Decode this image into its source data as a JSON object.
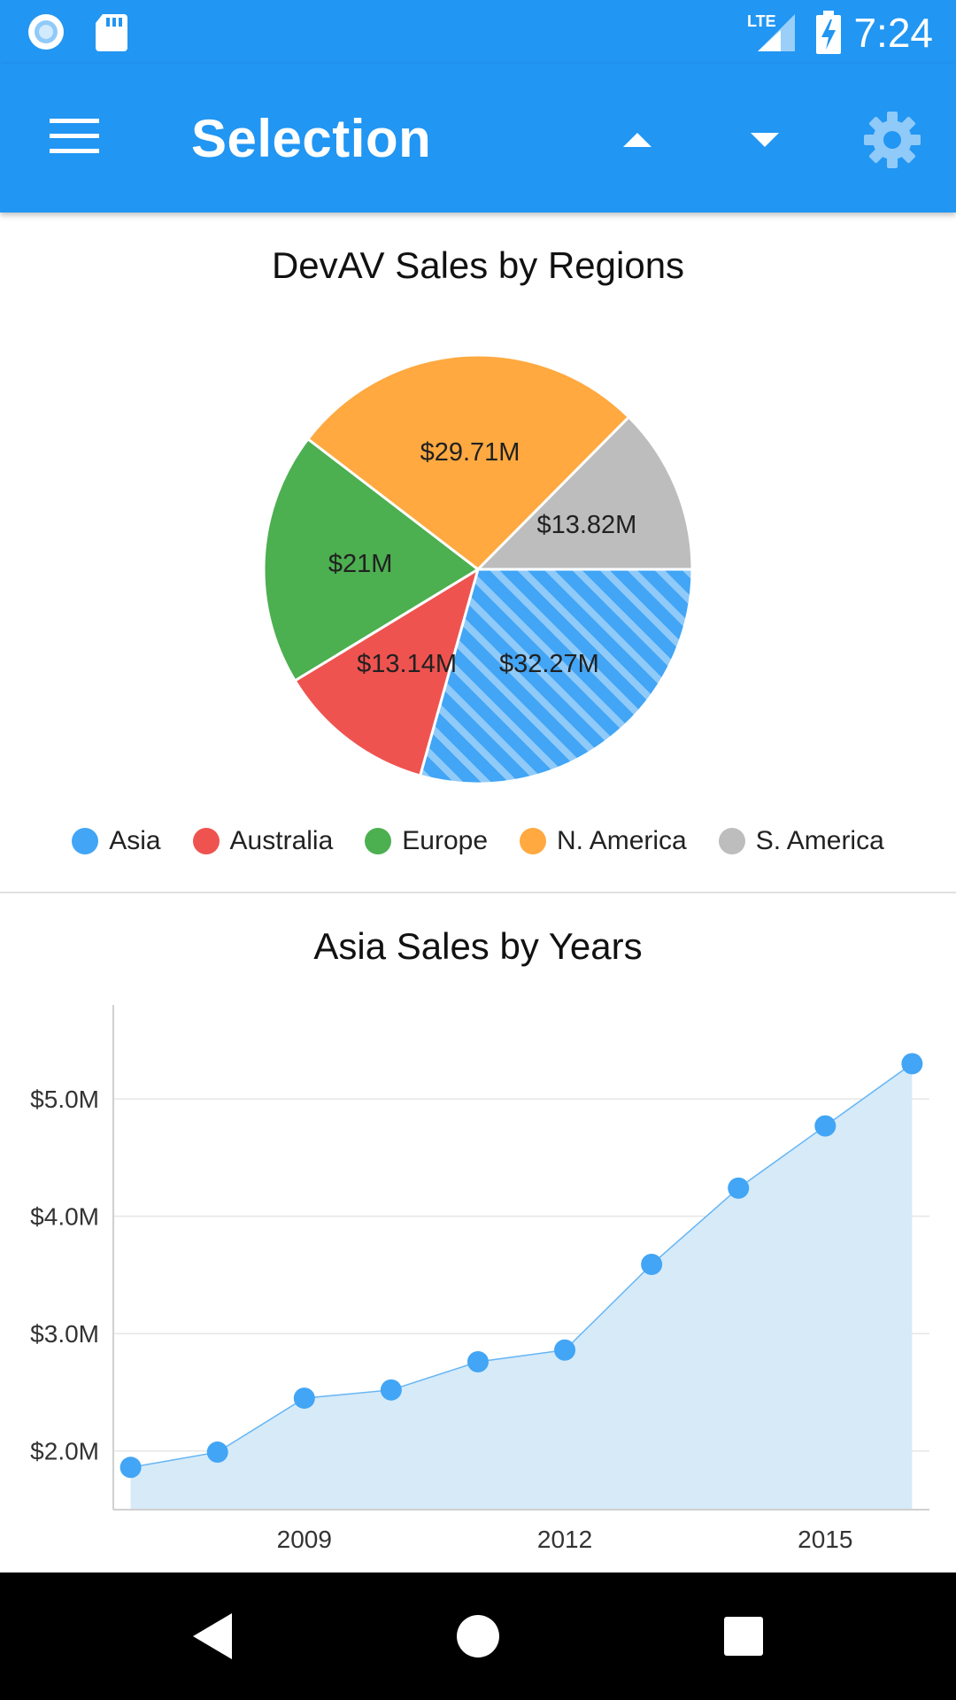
{
  "status_bar": {
    "time": "7:24",
    "icons": [
      "notification-circle-icon",
      "sd-card-icon",
      "lte-signal-icon",
      "battery-charging-icon"
    ]
  },
  "app_bar": {
    "title": "Selection",
    "icons": [
      "menu-icon",
      "arrow-up-icon",
      "arrow-down-icon",
      "settings-icon"
    ]
  },
  "colors": {
    "primary": "#2196F3",
    "asia": "#42A5F5",
    "australia": "#EF5350",
    "europe": "#4CAF50",
    "n_america": "#FFA940",
    "s_america": "#BDBDBD",
    "area_fill": "#D6EAF8"
  },
  "chart_data": [
    {
      "type": "pie",
      "title": "DevAV Sales by Regions",
      "categories": [
        "Asia",
        "Australia",
        "Europe",
        "N. America",
        "S. America"
      ],
      "values": [
        32.27,
        13.14,
        21,
        29.71,
        13.82
      ],
      "labels": [
        "$32.27M",
        "$13.14M",
        "$21M",
        "$29.71M",
        "$13.82M"
      ],
      "selected": "Asia",
      "legend": "bottom"
    },
    {
      "type": "area",
      "title": "Asia Sales by Years",
      "series": [
        {
          "x": [
            2007,
            2008,
            2009,
            2010,
            2011,
            2012,
            2013,
            2014,
            2015,
            2016
          ],
          "values": [
            1.86,
            1.99,
            2.45,
            2.52,
            2.76,
            2.86,
            3.59,
            4.24,
            4.77,
            5.3
          ]
        }
      ],
      "x_ticks": [
        "2009",
        "2012",
        "2015"
      ],
      "y_ticks": [
        "$2.0M",
        "$3.0M",
        "$4.0M",
        "$5.0M"
      ],
      "ylim": [
        1.5,
        5.65
      ],
      "xlim": [
        2006.8,
        2016.2
      ],
      "grid": true
    }
  ]
}
